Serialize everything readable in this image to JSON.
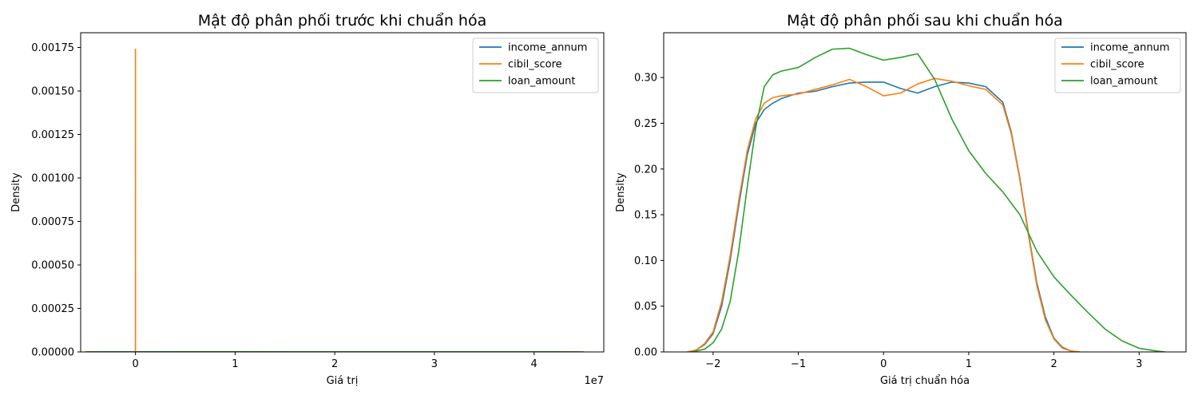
{
  "chart_data": [
    {
      "type": "line",
      "title": "Mật độ phân phối trước khi chuẩn hóa",
      "xlabel": "Giá trị",
      "ylabel": "Density",
      "x_offset_label": "1e7",
      "xlim": [
        -0.55,
        4.7
      ],
      "ylim": [
        0,
        0.001835
      ],
      "x_ticks": [
        {
          "value": 0,
          "label": "0"
        },
        {
          "value": 1,
          "label": "1"
        },
        {
          "value": 2,
          "label": "2"
        },
        {
          "value": 3,
          "label": "3"
        },
        {
          "value": 4,
          "label": "4"
        }
      ],
      "y_ticks": [
        {
          "value": 0,
          "label": "0.00000"
        },
        {
          "value": 0.00025,
          "label": "0.00025"
        },
        {
          "value": 0.0005,
          "label": "0.00050"
        },
        {
          "value": 0.00075,
          "label": "0.00075"
        },
        {
          "value": 0.001,
          "label": "0.00100"
        },
        {
          "value": 0.00125,
          "label": "0.00125"
        },
        {
          "value": 0.0015,
          "label": "0.00150"
        },
        {
          "value": 0.00175,
          "label": "0.00175"
        }
      ],
      "grid": false,
      "legend": "top-right",
      "series": [
        {
          "name": "income_annum",
          "color": "#1f77b4",
          "x": [
            -0.5,
            0.0,
            0.5,
            1.0,
            1.1,
            1.3,
            4.5
          ],
          "y": [
            0,
            2e-07,
            3e-07,
            2e-07,
            1e-07,
            0,
            0
          ]
        },
        {
          "name": "cibil_score",
          "color": "#ff7f0e",
          "x": [
            -0.5,
            -0.0002,
            -0.0001,
            0.0,
            0.0001,
            0.0002,
            4.5
          ],
          "y": [
            0,
            0,
            0.00174,
            0.00174,
            0.00174,
            0,
            0
          ]
        },
        {
          "name": "loan_amount",
          "color": "#2ca02c",
          "x": [
            -0.5,
            0.0,
            0.5,
            1.0,
            2.0,
            3.0,
            4.0,
            4.45
          ],
          "y": [
            0,
            6e-07,
            9e-07,
            8e-07,
            5e-07,
            3e-07,
            1e-07,
            0
          ]
        }
      ]
    },
    {
      "type": "line",
      "title": "Mật độ phân phối sau khi chuẩn hóa",
      "xlabel": "Giá trị chuẩn hóa",
      "ylabel": "Density",
      "xlim": [
        -2.58,
        3.55
      ],
      "ylim": [
        0,
        0.349
      ],
      "x_ticks": [
        {
          "value": -2,
          "label": "−2"
        },
        {
          "value": -1,
          "label": "−1"
        },
        {
          "value": 0,
          "label": "0"
        },
        {
          "value": 1,
          "label": "1"
        },
        {
          "value": 2,
          "label": "2"
        },
        {
          "value": 3,
          "label": "3"
        }
      ],
      "y_ticks": [
        {
          "value": 0,
          "label": "0.00"
        },
        {
          "value": 0.05,
          "label": "0.05"
        },
        {
          "value": 0.1,
          "label": "0.10"
        },
        {
          "value": 0.15,
          "label": "0.15"
        },
        {
          "value": 0.2,
          "label": "0.20"
        },
        {
          "value": 0.25,
          "label": "0.25"
        },
        {
          "value": 0.3,
          "label": "0.30"
        }
      ],
      "grid": false,
      "legend": "top-right",
      "series": [
        {
          "name": "income_annum",
          "color": "#1f77b4",
          "x": [
            -2.3,
            -2.2,
            -2.1,
            -2.0,
            -1.9,
            -1.8,
            -1.7,
            -1.6,
            -1.5,
            -1.4,
            -1.3,
            -1.2,
            -1.0,
            -0.8,
            -0.6,
            -0.4,
            -0.2,
            0.0,
            0.2,
            0.4,
            0.6,
            0.8,
            1.0,
            1.2,
            1.4,
            1.5,
            1.6,
            1.7,
            1.8,
            1.9,
            2.0,
            2.1,
            2.2,
            2.3
          ],
          "y": [
            0.0,
            0.002,
            0.008,
            0.02,
            0.05,
            0.1,
            0.16,
            0.215,
            0.25,
            0.265,
            0.272,
            0.277,
            0.283,
            0.285,
            0.29,
            0.294,
            0.295,
            0.295,
            0.288,
            0.283,
            0.29,
            0.295,
            0.294,
            0.29,
            0.273,
            0.24,
            0.19,
            0.13,
            0.075,
            0.038,
            0.015,
            0.005,
            0.001,
            0.0
          ]
        },
        {
          "name": "cibil_score",
          "color": "#ff7f0e",
          "x": [
            -2.3,
            -2.2,
            -2.1,
            -2.0,
            -1.9,
            -1.8,
            -1.7,
            -1.6,
            -1.5,
            -1.4,
            -1.3,
            -1.2,
            -1.0,
            -0.8,
            -0.6,
            -0.4,
            -0.2,
            0.0,
            0.2,
            0.4,
            0.6,
            0.8,
            1.0,
            1.2,
            1.4,
            1.5,
            1.6,
            1.7,
            1.8,
            1.9,
            2.0,
            2.1,
            2.2,
            2.3
          ],
          "y": [
            0.0,
            0.002,
            0.009,
            0.022,
            0.055,
            0.105,
            0.165,
            0.22,
            0.255,
            0.272,
            0.278,
            0.28,
            0.282,
            0.287,
            0.292,
            0.298,
            0.29,
            0.28,
            0.283,
            0.293,
            0.299,
            0.296,
            0.291,
            0.287,
            0.27,
            0.238,
            0.188,
            0.128,
            0.072,
            0.035,
            0.014,
            0.004,
            0.001,
            0.0
          ]
        },
        {
          "name": "loan_amount",
          "color": "#2ca02c",
          "x": [
            -2.25,
            -2.1,
            -2.0,
            -1.9,
            -1.8,
            -1.7,
            -1.6,
            -1.5,
            -1.4,
            -1.3,
            -1.2,
            -1.0,
            -0.8,
            -0.6,
            -0.4,
            -0.2,
            0.0,
            0.2,
            0.4,
            0.6,
            0.8,
            1.0,
            1.2,
            1.4,
            1.6,
            1.8,
            2.0,
            2.2,
            2.4,
            2.6,
            2.8,
            3.0,
            3.2,
            3.3
          ],
          "y": [
            0.0,
            0.003,
            0.01,
            0.025,
            0.055,
            0.11,
            0.18,
            0.245,
            0.29,
            0.303,
            0.307,
            0.311,
            0.322,
            0.331,
            0.332,
            0.325,
            0.319,
            0.322,
            0.326,
            0.298,
            0.255,
            0.22,
            0.195,
            0.175,
            0.15,
            0.11,
            0.082,
            0.062,
            0.043,
            0.025,
            0.012,
            0.004,
            0.001,
            0.0
          ]
        }
      ]
    }
  ]
}
